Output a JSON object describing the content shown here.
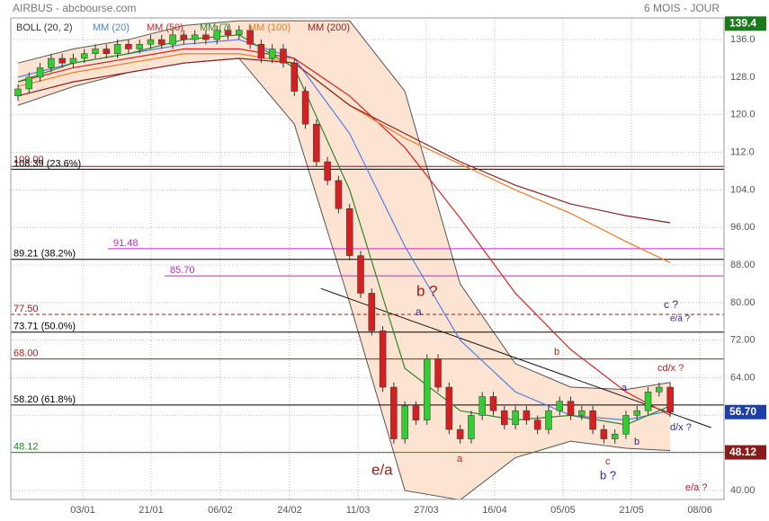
{
  "chart_data": {
    "type": "candlestick",
    "title": "AIRBUS - abcbourse.com",
    "subtitle": "6 MOIS - JOUR",
    "xlim": [
      -0.65,
      63.87
    ],
    "ylim": [
      38.1,
      140.6
    ],
    "yticks": [
      {
        "value": 40,
        "label": "40.00"
      },
      {
        "value": 48,
        "label": "48.00"
      },
      {
        "value": 56,
        "label": "56.00"
      },
      {
        "value": 64,
        "label": "64.00"
      },
      {
        "value": 72,
        "label": "72.00"
      },
      {
        "value": 80,
        "label": "80.00"
      },
      {
        "value": 88,
        "label": "88.00"
      },
      {
        "value": 96,
        "label": "96.00"
      },
      {
        "value": 104,
        "label": "104.0"
      },
      {
        "value": 112,
        "label": "112.0"
      },
      {
        "value": 120,
        "label": "120.0"
      },
      {
        "value": 128,
        "label": "128.0"
      },
      {
        "value": 136,
        "label": "136.0"
      }
    ],
    "xticks": [
      {
        "value": 5.86,
        "label": "03/01"
      },
      {
        "value": 12.04,
        "label": "21/01"
      },
      {
        "value": 18.3,
        "label": "06/02"
      },
      {
        "value": 24.57,
        "label": "24/02"
      },
      {
        "value": 30.76,
        "label": "11/03"
      },
      {
        "value": 36.94,
        "label": "27/03"
      },
      {
        "value": 43.12,
        "label": "16/04"
      },
      {
        "value": 49.3,
        "label": "05/05"
      },
      {
        "value": 55.5,
        "label": "21/05"
      },
      {
        "value": 61.68,
        "label": "08/06"
      }
    ],
    "grid": true,
    "up_color": "#33cc33",
    "down_color": "#d42020",
    "candles": {
      "open": [
        124,
        125.5,
        128,
        130,
        132,
        131,
        132,
        133,
        134,
        133,
        135,
        134,
        135,
        136,
        135,
        137,
        136,
        137,
        136,
        138,
        137,
        138,
        135,
        132,
        134,
        131,
        125,
        118,
        110,
        106,
        100,
        90,
        82,
        74,
        62,
        51,
        58,
        55,
        68,
        62,
        53,
        51,
        56,
        60,
        57,
        54,
        57,
        55,
        53,
        57,
        59,
        56,
        57,
        53,
        51,
        52,
        56,
        57,
        61,
        62
      ],
      "high": [
        126.5,
        129,
        131,
        133,
        133,
        133,
        134,
        135,
        135,
        136,
        136,
        136,
        137,
        137,
        138,
        138,
        138,
        138,
        139,
        139,
        139,
        139,
        136,
        135,
        135,
        132,
        126,
        119,
        111,
        107,
        101,
        91,
        83,
        75,
        63,
        59,
        59,
        69,
        69,
        63,
        54,
        57,
        61,
        61,
        58,
        58,
        58,
        56,
        58,
        60,
        60,
        58,
        58,
        54,
        53,
        57,
        58,
        62,
        63,
        63
      ],
      "low": [
        123,
        124.5,
        127,
        129,
        130,
        130,
        131,
        132,
        132,
        132,
        133,
        133,
        134,
        134,
        134,
        135,
        135,
        135,
        135,
        136,
        136,
        134,
        131,
        131,
        130,
        124,
        117,
        109,
        105,
        99,
        89,
        81,
        73,
        61,
        50,
        50,
        54,
        54,
        61,
        52,
        50,
        50,
        55,
        56,
        53,
        53,
        54,
        52,
        52,
        56,
        55,
        55,
        52,
        50,
        50,
        51,
        55,
        56,
        60,
        55.7
      ],
      "close": [
        125.5,
        128,
        130,
        132,
        131,
        132,
        133,
        134,
        133,
        135,
        134,
        135,
        136,
        135,
        137,
        136,
        137,
        136,
        138,
        137,
        138,
        135,
        132,
        134,
        131,
        125,
        118,
        110,
        106,
        100,
        90,
        82,
        74,
        62,
        51,
        58,
        55,
        68,
        62,
        53,
        51,
        56,
        60,
        57,
        54,
        57,
        55,
        53,
        57,
        59,
        56,
        57,
        53,
        51,
        52,
        56,
        57,
        61,
        62,
        56.7
      ]
    },
    "line_index": [
      0,
      5,
      10,
      15,
      20,
      25,
      30,
      35,
      40,
      45,
      50,
      55,
      59
    ],
    "bollinger": {
      "name": "BOLL (20, 2)",
      "color": "#555555",
      "fill": "#fde3d2",
      "upper": [
        131,
        134,
        136,
        139,
        140,
        140,
        140,
        125,
        84,
        67,
        62,
        61.5,
        63
      ],
      "lower": [
        122,
        126,
        129,
        131,
        132,
        118,
        80,
        40,
        38,
        47,
        50.5,
        49,
        48.5
      ]
    },
    "series": [
      {
        "name": "MM (20)",
        "color": "#4f7fe8",
        "values": [
          128,
          131,
          133,
          135,
          136,
          132,
          116,
          92,
          72,
          61,
          56,
          55,
          57
        ]
      },
      {
        "name": "MM (50)",
        "color": "#e02020",
        "values": [
          127,
          130,
          132,
          134,
          134,
          132,
          124,
          113,
          98,
          82,
          70,
          61,
          56
        ]
      },
      {
        "name": "MM (7)",
        "color": "#2a8a2a",
        "values": [
          127,
          131,
          133,
          136,
          137,
          130,
          104,
          66,
          57,
          55,
          56,
          54,
          58
        ]
      },
      {
        "name": "MM (100)",
        "color": "#f07a20",
        "values": [
          126,
          129,
          131,
          133,
          133,
          131,
          122,
          115,
          109.5,
          104,
          99,
          93,
          88.5
        ]
      },
      {
        "name": "MM (200)",
        "color": "#8b1f1f",
        "values": [
          124,
          127,
          129,
          131,
          132,
          131,
          122,
          116,
          110,
          105,
          101,
          98.5,
          97
        ]
      }
    ],
    "trendline": {
      "x": [
        27.4,
        62.7
      ],
      "y": [
        83,
        53.4
      ]
    },
    "levels": [
      {
        "label": "109.00",
        "value": 109,
        "color": "#8b1a1a"
      },
      {
        "label": "108.39 (23.6%)",
        "value": 108.39,
        "color": "#000000"
      },
      {
        "label": "91.48",
        "value": 91.48,
        "color": "#d01fd0"
      },
      {
        "label": "89.21 (38.2%)",
        "value": 89.21,
        "color": "#000000"
      },
      {
        "label": "85.70",
        "value": 85.7,
        "color": "#d01fd0"
      },
      {
        "label": "77.50",
        "value": 77.5,
        "color": "#a01a1a",
        "dashed": true
      },
      {
        "label": "73.71 (50.0%)",
        "value": 73.71,
        "color": "#000000"
      },
      {
        "label": "68.00",
        "value": 68,
        "color": "#b01a1a"
      },
      {
        "label": "58.20 (61.8%)",
        "value": 58.2,
        "color": "#000000"
      },
      {
        "label": "48.12",
        "value": 48.12,
        "color": "#1a8a1a"
      }
    ],
    "price_tags": [
      {
        "value": 139.4,
        "label": "139.4",
        "color": "#1a7a1a"
      },
      {
        "value": 56.7,
        "label": "56.70",
        "color": "#1f3fa8"
      },
      {
        "value": 48.12,
        "label": "48.12",
        "color": "#8b1a1a"
      }
    ],
    "annotations": [
      {
        "text": "b ?",
        "color": "#a01a1a"
      },
      {
        "text": "a",
        "color": "#2a2a8a"
      },
      {
        "text": "e/a",
        "color": "#a01a1a"
      },
      {
        "text": "a",
        "color": "#c02020"
      },
      {
        "text": "b",
        "color": "#c02020"
      },
      {
        "text": "a",
        "color": "#2a2a8a"
      },
      {
        "text": "b",
        "color": "#2a2a8a"
      },
      {
        "text": "c",
        "color": "#c02020"
      },
      {
        "text": "b ?",
        "color": "#2a2a8a"
      },
      {
        "text": "c ?",
        "color": "#2a2a8a"
      },
      {
        "text": "e/a ?",
        "color": "#2a2a8a"
      },
      {
        "text": "cd/x ?",
        "color": "#c02020"
      },
      {
        "text": "d/x ?",
        "color": "#2a2a8a"
      },
      {
        "text": "e/a ?",
        "color": "#c02020"
      }
    ]
  }
}
